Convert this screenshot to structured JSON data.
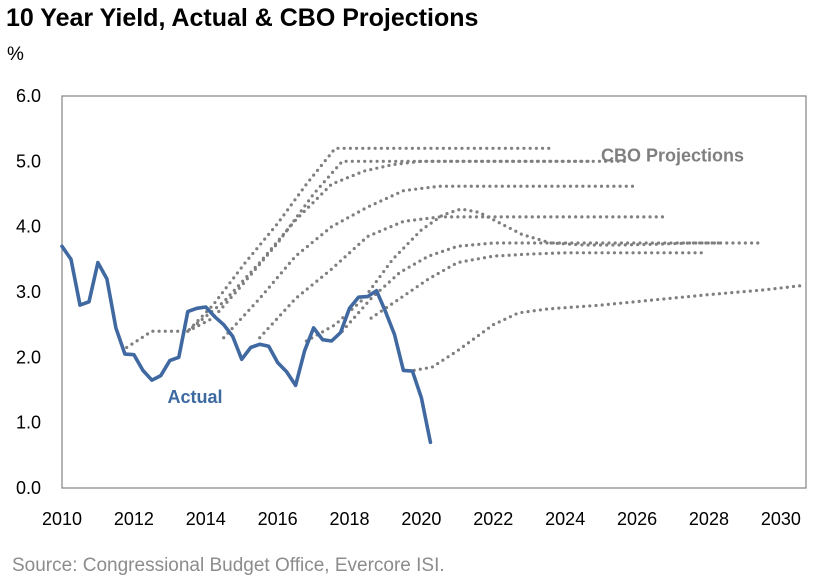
{
  "title": "10 Year Yield, Actual & CBO Projections",
  "y_unit": "%",
  "source": "Source: Congressional Budget Office, Evercore ISI.",
  "colors": {
    "actual": "#4169a1",
    "projection": "#7f7f7f",
    "axis": "#8c8c8c",
    "annotation_actual": "#3c6aa0",
    "annotation_cbo": "#7f7f7f"
  },
  "chart_data": {
    "type": "line",
    "title": "10 Year Yield, Actual & CBO Projections",
    "xlabel": "",
    "ylabel": "%",
    "xlim": [
      2010,
      2030.7
    ],
    "ylim": [
      0,
      6
    ],
    "x_ticks": [
      "2010",
      "2012",
      "2014",
      "2016",
      "2018",
      "2020",
      "2022",
      "2024",
      "2026",
      "2028",
      "2030"
    ],
    "y_ticks": [
      "0.0",
      "1.0",
      "2.0",
      "3.0",
      "4.0",
      "5.0",
      "6.0"
    ],
    "grid": false,
    "annotations": [
      {
        "text": "Actual",
        "series": "actual",
        "x": 2013.7,
        "y": 1.3
      },
      {
        "text": "CBO Projections",
        "series": "projections",
        "x": 2025.5,
        "y": 5.0
      }
    ],
    "series": [
      {
        "style": "solid",
        "color": "#4169a1",
        "x": [
          2010.0,
          2010.25,
          2010.5,
          2010.75,
          2011.0,
          2011.25,
          2011.5,
          2011.75,
          2012.0,
          2012.25,
          2012.5,
          2012.75,
          2013.0,
          2013.25,
          2013.5,
          2013.75,
          2014.0,
          2014.25,
          2014.5,
          2014.75,
          2015.0,
          2015.25,
          2015.5,
          2015.75,
          2016.0,
          2016.25,
          2016.5,
          2016.75,
          2017.0,
          2017.25,
          2017.5,
          2017.75,
          2018.0,
          2018.25,
          2018.5,
          2018.75,
          2019.0,
          2019.25,
          2019.5,
          2019.75,
          2020.0,
          2020.25
        ],
        "y": [
          3.7,
          3.5,
          2.8,
          2.85,
          3.45,
          3.2,
          2.45,
          2.05,
          2.04,
          1.8,
          1.65,
          1.72,
          1.95,
          2.0,
          2.7,
          2.75,
          2.77,
          2.62,
          2.5,
          2.32,
          1.97,
          2.15,
          2.2,
          2.17,
          1.92,
          1.78,
          1.57,
          2.1,
          2.45,
          2.27,
          2.25,
          2.38,
          2.75,
          2.92,
          2.93,
          3.02,
          2.7,
          2.35,
          1.8,
          1.79,
          1.38,
          0.7
        ]
      },
      {
        "style": "dotted",
        "color": "#7f7f7f",
        "x": [
          2011.8,
          2012.5,
          2013.5,
          2014.2,
          2015.1,
          2016.0,
          2016.8,
          2017.6,
          2018.4,
          2019.2,
          2020.0,
          2021.0,
          2022.0,
          2023.0,
          2023.7
        ],
        "y": [
          2.15,
          2.4,
          2.4,
          2.8,
          3.45,
          4.05,
          4.65,
          5.2,
          5.2,
          5.2,
          5.2,
          5.2,
          5.2,
          5.2,
          5.2
        ]
      },
      {
        "style": "dotted",
        "color": "#7f7f7f",
        "x": [
          2013.5,
          2014.2,
          2015.0,
          2016.0,
          2017.0,
          2017.8,
          2018.6,
          2019.5,
          2020.5,
          2022.0,
          2023.5,
          2024.7
        ],
        "y": [
          2.4,
          2.6,
          3.1,
          3.75,
          4.5,
          5.0,
          5.0,
          5.0,
          5.0,
          5.0,
          5.0,
          5.0
        ]
      },
      {
        "style": "dotted",
        "color": "#7f7f7f",
        "x": [
          2013.5,
          2014.5,
          2015.5,
          2016.5,
          2017.5,
          2018.4,
          2019.2,
          2020.0,
          2021.5,
          2023.0,
          2024.5,
          2025.8
        ],
        "y": [
          2.4,
          2.85,
          3.45,
          4.1,
          4.65,
          4.85,
          4.95,
          5.0,
          5.0,
          5.0,
          5.0,
          5.0
        ]
      },
      {
        "style": "dotted",
        "color": "#7f7f7f",
        "x": [
          2014.5,
          2015.5,
          2016.5,
          2017.5,
          2018.5,
          2019.5,
          2020.5,
          2021.5,
          2022.5,
          2023.5,
          2024.5,
          2025.9
        ],
        "y": [
          2.3,
          2.9,
          3.55,
          4.0,
          4.3,
          4.55,
          4.62,
          4.62,
          4.62,
          4.62,
          4.62,
          4.62
        ]
      },
      {
        "style": "dotted",
        "color": "#7f7f7f",
        "x": [
          2015.5,
          2016.5,
          2017.5,
          2018.5,
          2019.5,
          2020.5,
          2021.5,
          2022.5,
          2023.5,
          2024.5,
          2025.5,
          2026.8
        ],
        "y": [
          2.3,
          2.9,
          3.35,
          3.85,
          4.08,
          4.15,
          4.15,
          4.15,
          4.15,
          4.15,
          4.15,
          4.15
        ]
      },
      {
        "style": "dotted",
        "color": "#7f7f7f",
        "x": [
          2016.8,
          2017.6,
          2018.4,
          2019.2,
          2020.0,
          2020.6,
          2021.1,
          2021.6,
          2022.2,
          2022.8,
          2023.6,
          2024.5,
          2025.5,
          2026.5,
          2027.5,
          2028.3
        ],
        "y": [
          2.25,
          2.5,
          2.9,
          3.5,
          3.95,
          4.18,
          4.27,
          4.22,
          4.05,
          3.88,
          3.75,
          3.72,
          3.72,
          3.73,
          3.75,
          3.75
        ]
      },
      {
        "style": "dotted",
        "color": "#7f7f7f",
        "x": [
          2017.8,
          2018.6,
          2019.4,
          2020.2,
          2021.0,
          2022.0,
          2023.0,
          2024.0,
          2025.0,
          2026.0,
          2027.0,
          2028.0,
          2029.5
        ],
        "y": [
          2.4,
          2.9,
          3.3,
          3.55,
          3.7,
          3.75,
          3.75,
          3.75,
          3.75,
          3.75,
          3.75,
          3.75,
          3.75
        ]
      },
      {
        "style": "dotted",
        "color": "#7f7f7f",
        "x": [
          2018.6,
          2019.4,
          2020.2,
          2021.0,
          2022.0,
          2023.0,
          2024.0,
          2025.0,
          2026.0,
          2027.0,
          2027.8
        ],
        "y": [
          2.6,
          2.9,
          3.2,
          3.45,
          3.55,
          3.58,
          3.6,
          3.6,
          3.6,
          3.6,
          3.6
        ]
      },
      {
        "style": "dotted",
        "color": "#7f7f7f",
        "x": [
          2019.8,
          2020.3,
          2021.0,
          2022.0,
          2022.7,
          2023.5,
          2025.0,
          2026.5,
          2028.0,
          2029.5,
          2030.6
        ],
        "y": [
          1.8,
          1.85,
          2.1,
          2.5,
          2.68,
          2.74,
          2.8,
          2.88,
          2.96,
          3.03,
          3.1
        ]
      }
    ]
  }
}
